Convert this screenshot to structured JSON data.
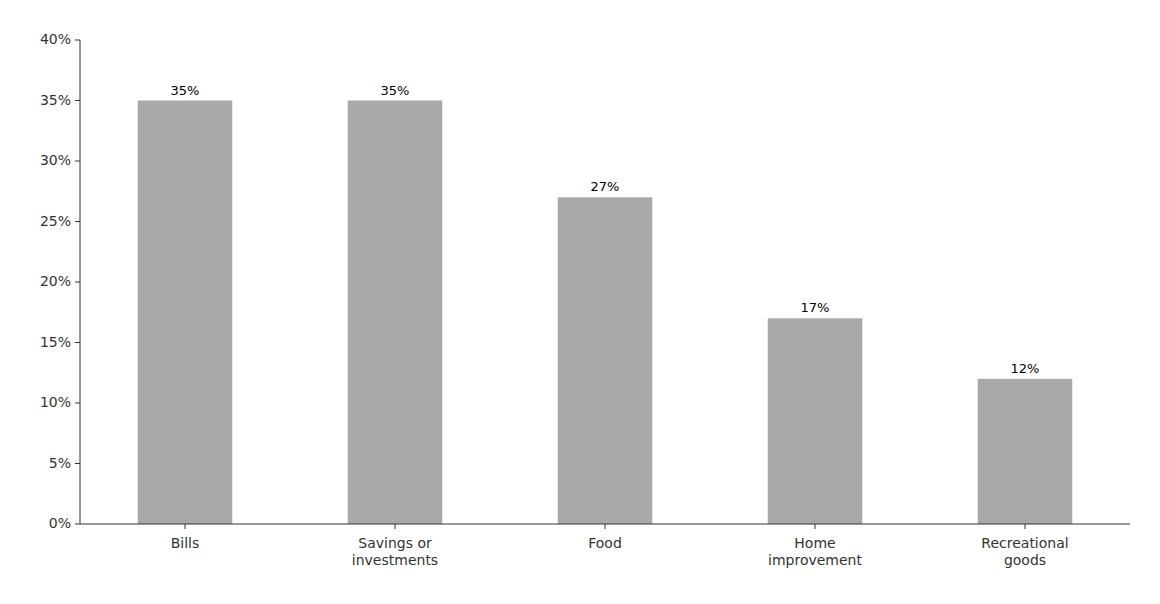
{
  "chart_data": {
    "type": "bar",
    "categories": [
      "Bills",
      "Savings or\ninvestments",
      "Food",
      "Home\nimprovement",
      "Recreational\ngoods"
    ],
    "values": [
      35,
      35,
      27,
      17,
      12
    ],
    "value_labels": [
      "35%",
      "35%",
      "27%",
      "17%",
      "12%"
    ],
    "data_labels": true,
    "color": "#a9a9a9",
    "ylim": [
      0,
      40
    ],
    "yticks": [
      {
        "value": 0,
        "label": "0%"
      },
      {
        "value": 5,
        "label": "5%"
      },
      {
        "value": 10,
        "label": "10%"
      },
      {
        "value": 15,
        "label": "15%"
      },
      {
        "value": 20,
        "label": "20%"
      },
      {
        "value": 25,
        "label": "25%"
      },
      {
        "value": 30,
        "label": "30%"
      },
      {
        "value": 35,
        "label": "35%"
      },
      {
        "value": 40,
        "label": "40%"
      }
    ],
    "grid": false
  }
}
